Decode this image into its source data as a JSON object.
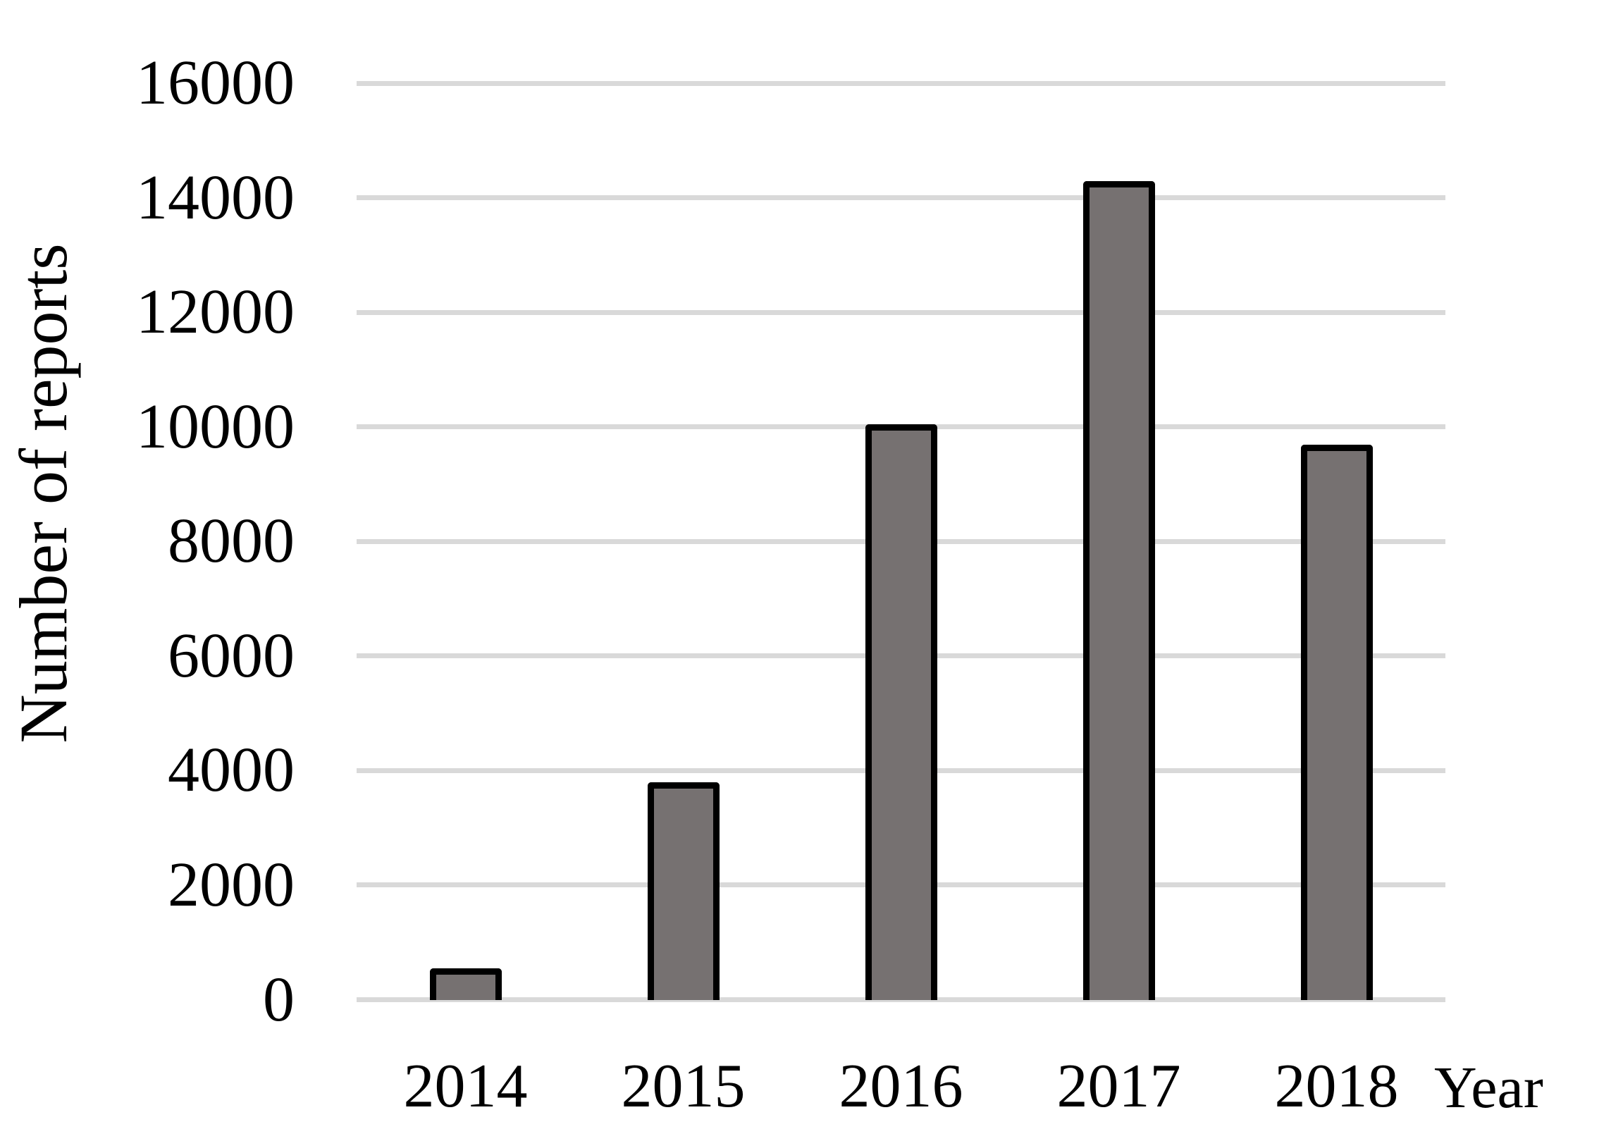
{
  "chart_data": {
    "type": "bar",
    "title": "",
    "xlabel": "Year",
    "ylabel": "Number of reports",
    "categories": [
      "2014",
      "2015",
      "2016",
      "2017",
      "2018"
    ],
    "values": [
      550,
      3800,
      10050,
      14300,
      9700
    ],
    "ylim": [
      0,
      16000
    ],
    "ytick_step": 2000,
    "yticks": [
      0,
      2000,
      4000,
      6000,
      8000,
      10000,
      12000,
      14000,
      16000
    ],
    "grid": "horizontal",
    "legend": "none",
    "colors": {
      "bar_fill": "#767171",
      "bar_border": "#000000",
      "gridline": "#d9d9d9",
      "text": "#000000",
      "background": "#ffffff"
    }
  }
}
